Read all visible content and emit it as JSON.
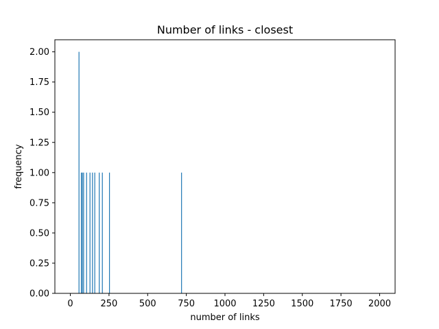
{
  "chart_data": {
    "type": "bar",
    "title": "Number of links - closest",
    "xlabel": "number of links",
    "ylabel": "frequency",
    "xlim": [
      -100,
      2100
    ],
    "ylim": [
      0,
      2.1
    ],
    "x_ticks": [
      0,
      250,
      500,
      750,
      1000,
      1250,
      1500,
      1750,
      2000
    ],
    "y_ticks": [
      0.0,
      0.25,
      0.5,
      0.75,
      1.0,
      1.25,
      1.5,
      1.75,
      2.0
    ],
    "x_tick_labels": [
      "0",
      "250",
      "500",
      "750",
      "1000",
      "1250",
      "1500",
      "1750",
      "2000"
    ],
    "y_tick_labels": [
      "0.00",
      "0.25",
      "0.50",
      "0.75",
      "1.00",
      "1.25",
      "1.50",
      "1.75",
      "2.00"
    ],
    "grid": false,
    "bar_color": "#1f77b4",
    "bars": [
      {
        "x": 56,
        "value": 2
      },
      {
        "x": 71,
        "value": 1
      },
      {
        "x": 78,
        "value": 1
      },
      {
        "x": 86,
        "value": 1
      },
      {
        "x": 105,
        "value": 1
      },
      {
        "x": 127,
        "value": 1
      },
      {
        "x": 143,
        "value": 1
      },
      {
        "x": 158,
        "value": 1
      },
      {
        "x": 187,
        "value": 1
      },
      {
        "x": 207,
        "value": 1
      },
      {
        "x": 253,
        "value": 1
      },
      {
        "x": 719,
        "value": 1
      }
    ]
  }
}
